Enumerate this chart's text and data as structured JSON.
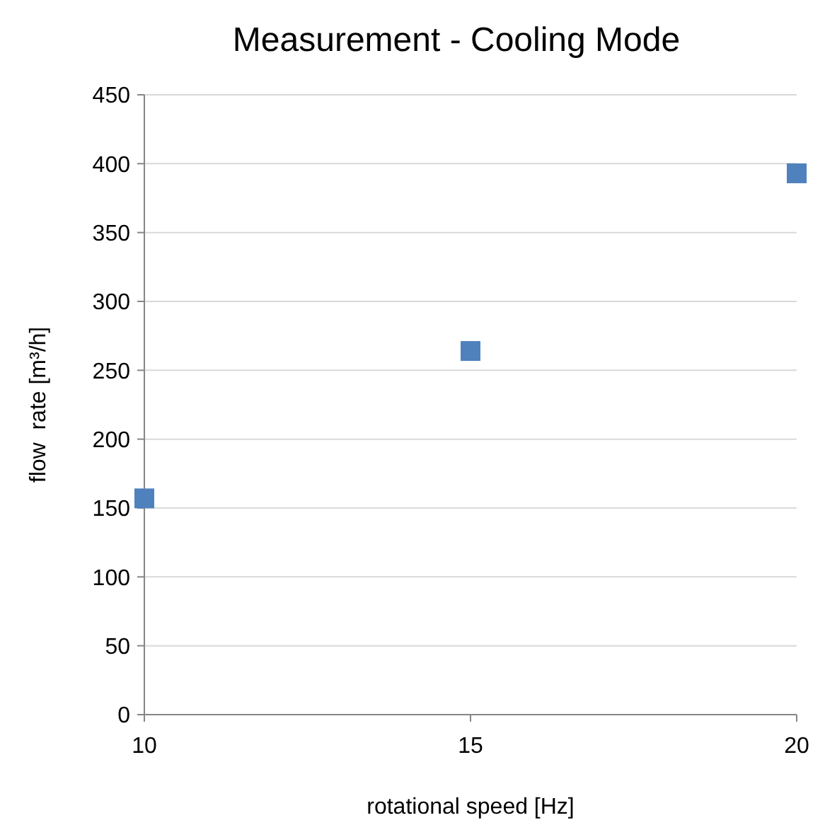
{
  "chart_data": {
    "type": "scatter",
    "title": "Measurement - Cooling Mode",
    "xlabel": "rotational speed [Hz]",
    "ylabel": "flow  rate [m³/h]",
    "x": [
      10,
      15,
      20
    ],
    "series": [
      {
        "color": "#4f81bd",
        "values": [
          157,
          264,
          393
        ]
      }
    ],
    "xlim": [
      10,
      20
    ],
    "xticks": [
      10,
      15,
      20
    ],
    "ylim": [
      0,
      450
    ],
    "yticks": [
      0,
      50,
      100,
      150,
      200,
      250,
      300,
      350,
      400,
      450
    ],
    "grid": "y",
    "marker": "square"
  }
}
